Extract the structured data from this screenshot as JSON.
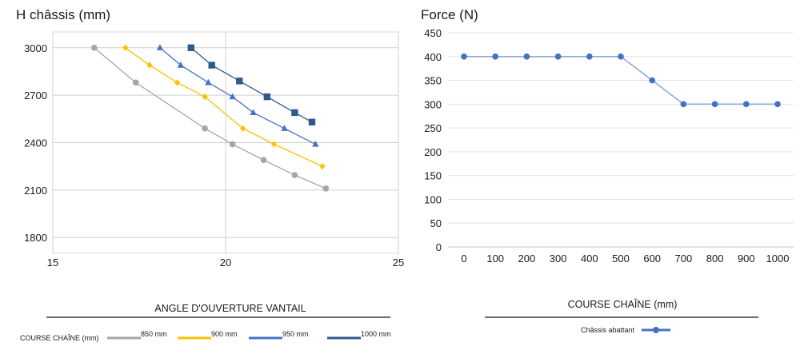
{
  "chart_data": [
    {
      "type": "line",
      "title": "H châssis (mm)",
      "xlabel": "ANGLE D'OUVERTURE VANTAIL",
      "ylabel": "",
      "xlim": [
        15,
        25
      ],
      "ylim": [
        1700,
        3100
      ],
      "x_ticks": [
        15,
        20,
        25
      ],
      "y_ticks": [
        1800,
        2100,
        2400,
        2700,
        3000
      ],
      "grid": true,
      "legend": {
        "title": "COURSE CHAÎNE (mm)",
        "placement": "bottom"
      },
      "series": [
        {
          "name": "850 mm",
          "color": "#a6a6a6",
          "marker": "circle",
          "points": [
            [
              16.2,
              3000
            ],
            [
              17.4,
              2780
            ],
            [
              19.4,
              2490
            ],
            [
              20.2,
              2390
            ],
            [
              21.1,
              2290
            ],
            [
              22.0,
              2195
            ],
            [
              22.9,
              2110
            ]
          ]
        },
        {
          "name": "900 mm",
          "color": "#ffc000",
          "marker": "diamond",
          "points": [
            [
              17.1,
              3000
            ],
            [
              17.8,
              2890
            ],
            [
              18.6,
              2780
            ],
            [
              19.4,
              2690
            ],
            [
              20.5,
              2490
            ],
            [
              21.4,
              2390
            ],
            [
              22.8,
              2250
            ]
          ]
        },
        {
          "name": "950 mm",
          "color": "#4472c4",
          "marker": "triangle",
          "points": [
            [
              18.1,
              3000
            ],
            [
              18.7,
              2890
            ],
            [
              19.5,
              2780
            ],
            [
              20.2,
              2690
            ],
            [
              20.8,
              2590
            ],
            [
              21.7,
              2490
            ],
            [
              22.6,
              2390
            ]
          ]
        },
        {
          "name": "1000 mm",
          "color": "#2e5a8e",
          "marker": "square",
          "points": [
            [
              19.0,
              3000
            ],
            [
              19.6,
              2890
            ],
            [
              20.4,
              2790
            ],
            [
              21.2,
              2690
            ],
            [
              22.0,
              2590
            ],
            [
              22.5,
              2530
            ]
          ]
        }
      ]
    },
    {
      "type": "line",
      "title": "Force (N)",
      "xlabel": "COURSE CHAÎNE (mm)",
      "ylabel": "",
      "categories": [
        "0",
        "100",
        "200",
        "300",
        "400",
        "500",
        "600",
        "700",
        "800",
        "900",
        "1000"
      ],
      "ylim": [
        0,
        450
      ],
      "y_ticks": [
        0,
        50,
        100,
        150,
        200,
        250,
        300,
        350,
        400,
        450
      ],
      "grid": true,
      "legend": {
        "placement": "bottom"
      },
      "series": [
        {
          "name": "Châssis abattant",
          "color": "#4472c4",
          "marker": "circle",
          "values": [
            400,
            400,
            400,
            400,
            400,
            400,
            350,
            300,
            300,
            300,
            300
          ]
        }
      ]
    }
  ]
}
